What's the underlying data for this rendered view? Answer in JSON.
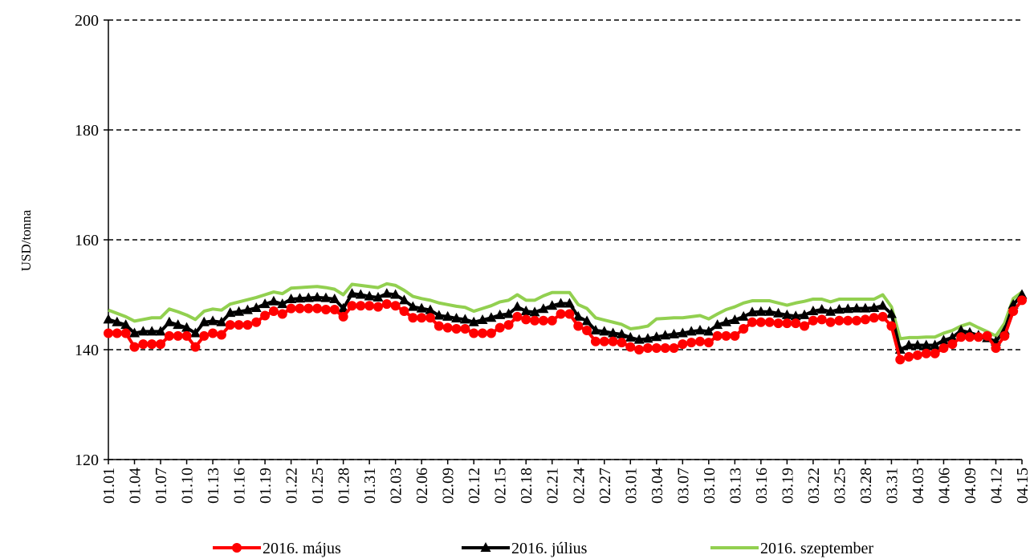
{
  "chart_data": {
    "type": "line",
    "y_label": "USD/tonna",
    "categories": [
      "01.01",
      null,
      null,
      "01.04",
      null,
      null,
      "01.07",
      null,
      null,
      "01.10",
      null,
      null,
      "01.13",
      null,
      null,
      "01.16",
      null,
      null,
      "01.19",
      null,
      null,
      "01.22",
      null,
      null,
      "01.25",
      null,
      null,
      "01.28",
      null,
      null,
      "01.31",
      null,
      null,
      "02.03",
      null,
      null,
      "02.06",
      null,
      null,
      "02.09",
      null,
      null,
      "02.12",
      null,
      null,
      "02.15",
      null,
      null,
      "02.18",
      null,
      null,
      "02.21",
      null,
      null,
      "02.24",
      null,
      null,
      "02.27",
      null,
      null,
      "03.01",
      null,
      null,
      "03.04",
      null,
      null,
      "03.07",
      null,
      null,
      "03.10",
      null,
      null,
      "03.13",
      null,
      null,
      "03.16",
      null,
      null,
      "03.19",
      null,
      null,
      "03.22",
      null,
      null,
      "03.25",
      null,
      null,
      "03.28",
      null,
      null,
      "03.31",
      null,
      null,
      "04.03",
      null,
      null,
      "04.06",
      null,
      null,
      "04.09",
      null,
      null,
      "04.12",
      null,
      null,
      "04.15"
    ],
    "series": [
      {
        "name": "2016. május",
        "color": "#ff0000",
        "marker": "circle",
        "values": [
          143,
          143,
          143,
          140.5,
          141,
          141,
          141,
          142.5,
          142.5,
          142.5,
          140.5,
          142.5,
          143,
          142.7,
          144.5,
          144.5,
          144.5,
          145,
          146.2,
          147,
          146.5,
          147.5,
          147.5,
          147.5,
          147.5,
          147.3,
          147.3,
          146,
          148,
          148,
          148,
          147.8,
          148.3,
          148,
          147,
          145.8,
          145.8,
          145.8,
          144.3,
          144,
          143.8,
          143.8,
          143,
          143,
          143,
          144,
          144.5,
          146,
          145.5,
          145.3,
          145.3,
          145.3,
          146.5,
          146.5,
          144.3,
          143.5,
          141.5,
          141.5,
          141.5,
          141.3,
          140.5,
          140,
          140.3,
          140.3,
          140.3,
          140.3,
          141,
          141.3,
          141.5,
          141.3,
          142.5,
          142.5,
          142.5,
          143.8,
          145,
          145,
          145,
          144.8,
          144.8,
          144.8,
          144.3,
          145.3,
          145.5,
          145,
          145.3,
          145.3,
          145.3,
          145.5,
          145.8,
          146,
          144.3,
          138.2,
          138.7,
          139,
          139.3,
          139.3,
          140.3,
          141,
          142.3,
          142.3,
          142.3,
          142.5,
          140.3,
          142.5,
          147,
          149
        ]
      },
      {
        "name": "2016. július",
        "color": "#000000",
        "marker": "triangle",
        "values": [
          145.5,
          145,
          144.5,
          143,
          143.3,
          143.3,
          143.3,
          145,
          144.5,
          144,
          143,
          145,
          145.2,
          145,
          146.7,
          146.9,
          147.2,
          147.6,
          148.3,
          148.8,
          148.3,
          149.2,
          149.3,
          149.4,
          149.5,
          149.4,
          149.2,
          147.5,
          150.2,
          150,
          149.7,
          149.5,
          150.2,
          150,
          149,
          147.8,
          147.5,
          147.2,
          146.2,
          146,
          145.7,
          145.5,
          145,
          145.4,
          145.8,
          146.3,
          146.5,
          147.8,
          147,
          146.8,
          147.4,
          148,
          148.4,
          148.4,
          146,
          145.2,
          143.5,
          143.3,
          143,
          142.8,
          142.2,
          141.8,
          142,
          142.3,
          142.6,
          142.8,
          143,
          143.3,
          143.5,
          143.3,
          144.5,
          145,
          145.4,
          146,
          146.8,
          146.9,
          146.9,
          146.6,
          146.3,
          146.1,
          146.3,
          147,
          147.3,
          146.9,
          147.3,
          147.4,
          147.5,
          147.5,
          147.6,
          148,
          146.5,
          140,
          140.8,
          140.8,
          140.8,
          140.8,
          141.7,
          142.2,
          143.5,
          143.1,
          142.6,
          142.1,
          141.5,
          143.5,
          148.2,
          150
        ]
      },
      {
        "name": "2016. szeptember",
        "color": "#92d050",
        "marker": "none",
        "values": [
          147.2,
          146.6,
          146,
          145.2,
          145.5,
          145.8,
          145.8,
          147.4,
          146.9,
          146.3,
          145.5,
          147,
          147.4,
          147.2,
          148.3,
          148.7,
          149.1,
          149.5,
          150,
          150.5,
          150.2,
          151.2,
          151.3,
          151.4,
          151.5,
          151.3,
          151,
          150,
          151.9,
          151.7,
          151.5,
          151.3,
          152,
          151.7,
          150.8,
          149.7,
          149.3,
          149,
          148.5,
          148.2,
          147.9,
          147.7,
          147,
          147.5,
          148,
          148.7,
          149,
          150,
          149,
          149,
          149.8,
          150.4,
          150.4,
          150.4,
          148.2,
          147.5,
          145.8,
          145.4,
          145,
          144.6,
          143.8,
          144,
          144.3,
          145.6,
          145.7,
          145.8,
          145.8,
          146,
          146.2,
          145.6,
          146.5,
          147.3,
          147.8,
          148.5,
          148.9,
          148.9,
          148.9,
          148.5,
          148.1,
          148.5,
          148.8,
          149.2,
          149.2,
          148.7,
          149.2,
          149.2,
          149.2,
          149.2,
          149.2,
          150,
          147.8,
          142,
          142.2,
          142.2,
          142.3,
          142.3,
          143,
          143.5,
          144.3,
          144.8,
          144,
          143.3,
          142.5,
          144.8,
          149.3,
          150.5
        ]
      }
    ],
    "ylim": [
      120,
      200
    ],
    "yticks": [
      120,
      140,
      160,
      180,
      200
    ],
    "grid": true,
    "legend": "bottom"
  }
}
